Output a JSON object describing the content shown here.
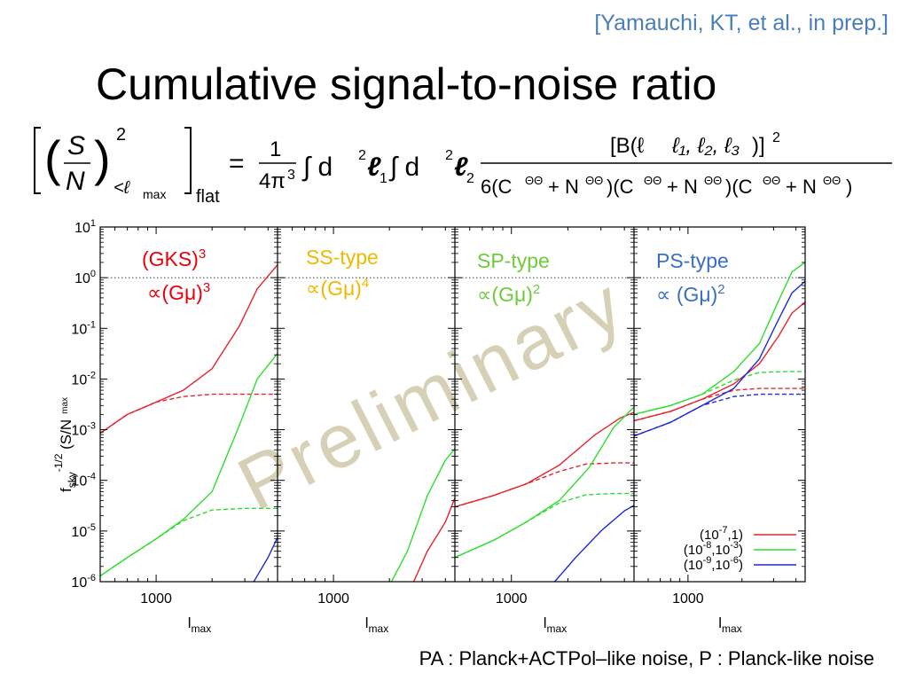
{
  "citation": "[Yamauchi, KT, et al., in prep.]",
  "title": "Cumulative signal-to-noise ratio",
  "formula": {
    "lhs_S": "S",
    "lhs_N": "N",
    "lhs_power": "2",
    "lhs_sub": "<ℓ",
    "lhs_sub2": "max",
    "lhs_flat": "flat",
    "equals": "=",
    "coef_num": "1",
    "coef_den": "4π",
    "coef_den_sup": "3",
    "integral1": "∫ d",
    "integral1_sup": "2",
    "ell1": "ℓ",
    "ell1_sub": "1",
    "integral2": "∫ d",
    "integral2_sup": "2",
    "ell2": "ℓ",
    "ell2_sub": "2",
    "numerator": "[B(ℓ",
    "numerator_tail": ")]",
    "numerator_sup": "2",
    "denominator_lead": "6(C",
    "theta": "ΘΘ",
    "plus": "+ N",
    "close_open": ")(C",
    "close": ")"
  },
  "panel_labels": [
    {
      "line1": "(GKS)",
      "line1_sup": "3",
      "line2": "∝(Gμ)",
      "line2_sup": "3",
      "color": "#e8000b"
    },
    {
      "line1": "SS-type",
      "line1_sup": "",
      "line2": "∝(Gμ)",
      "line2_sup": "4",
      "color": "#f0b800"
    },
    {
      "line1": "SP-type",
      "line1_sup": "",
      "line2": "∝(Gμ)",
      "line2_sup": "2",
      "color": "#6fcb3b"
    },
    {
      "line1": "PS-type",
      "line1_sup": "",
      "line2": "∝ (Gμ)",
      "line2_sup": "2",
      "color": "#3a6ec4"
    }
  ],
  "watermark": "Preliminary",
  "footer": "PA : Planck+ACTPol–like noise, P : Planck-like noise",
  "colors": {
    "red": "#e8232b",
    "green": "#2ede2e",
    "blue": "#1c2bd8",
    "watermark": "#d6d0b6"
  },
  "chart_data": {
    "type": "line",
    "log_y": true,
    "ylim": [
      1e-06,
      10
    ],
    "xlim": [
      500,
      4500
    ],
    "x_tick_label": "1000",
    "xlabel": "l",
    "xlabel_sub": "max",
    "ylabel": "f",
    "ylabel_sub": "sky",
    "ylabel_sup": "-1/2",
    "ylabel_tail": "(S/N",
    "ylabel_tail_sub": "max",
    "y_ticks": [
      {
        "base": "10",
        "exp": "1",
        "value": 10
      },
      {
        "base": "10",
        "exp": "0",
        "value": 1
      },
      {
        "base": "10",
        "exp": "-1",
        "value": 0.1
      },
      {
        "base": "10",
        "exp": "-2",
        "value": 0.01
      },
      {
        "base": "10",
        "exp": "-3",
        "value": 0.001
      },
      {
        "base": "10",
        "exp": "-4",
        "value": 0.0001
      },
      {
        "base": "10",
        "exp": "-5",
        "value": 1e-05
      },
      {
        "base": "10",
        "exp": "-6",
        "value": 1e-06
      }
    ],
    "reference_line": 1,
    "legend": [
      {
        "text": "(10",
        "sup1": "-7",
        "mid": ",1)",
        "sup2": "",
        "tail": "",
        "color": "red"
      },
      {
        "text": "(10",
        "sup1": "-8",
        "mid": ",10",
        "sup2": "-3",
        "tail": ")",
        "color": "green"
      },
      {
        "text": "(10",
        "sup1": "-9",
        "mid": ",10",
        "sup2": "-6",
        "tail": ")",
        "color": "blue"
      }
    ],
    "panels": [
      {
        "name": "GKS",
        "series": [
          {
            "color": "red",
            "style": "solid",
            "points": [
              [
                500,
                0.00085
              ],
              [
                700,
                0.002
              ],
              [
                1000,
                0.0035
              ],
              [
                1400,
                0.006
              ],
              [
                2000,
                0.016
              ],
              [
                2800,
                0.11
              ],
              [
                3500,
                0.6
              ],
              [
                4500,
                1.8
              ]
            ]
          },
          {
            "color": "red",
            "style": "dashed",
            "points": [
              [
                500,
                0.00085
              ],
              [
                700,
                0.002
              ],
              [
                1000,
                0.0035
              ],
              [
                1400,
                0.0045
              ],
              [
                2000,
                0.005
              ],
              [
                3000,
                0.005
              ],
              [
                4500,
                0.005
              ]
            ]
          },
          {
            "color": "green",
            "style": "solid",
            "points": [
              [
                500,
                1.3e-06
              ],
              [
                700,
                3e-06
              ],
              [
                1000,
                7e-06
              ],
              [
                1400,
                1.7e-05
              ],
              [
                2000,
                6e-05
              ],
              [
                2800,
                0.0012
              ],
              [
                3500,
                0.01
              ],
              [
                4500,
                0.032
              ]
            ]
          },
          {
            "color": "green",
            "style": "dashed",
            "points": [
              [
                500,
                1.3e-06
              ],
              [
                700,
                3e-06
              ],
              [
                1000,
                7e-06
              ],
              [
                1400,
                1.6e-05
              ],
              [
                2000,
                2.6e-05
              ],
              [
                3000,
                2.8e-05
              ],
              [
                4500,
                2.8e-05
              ]
            ]
          },
          {
            "color": "blue",
            "style": "solid",
            "points": [
              [
                3350,
                1e-06
              ],
              [
                4000,
                3e-06
              ],
              [
                4500,
                7.5e-06
              ]
            ]
          }
        ]
      },
      {
        "name": "SS",
        "series": [
          {
            "color": "green",
            "style": "solid",
            "points": [
              [
                2050,
                1e-06
              ],
              [
                2500,
                4e-06
              ],
              [
                3200,
                5e-05
              ],
              [
                4000,
                0.00025
              ],
              [
                4500,
                0.00042
              ]
            ]
          },
          {
            "color": "red",
            "style": "solid",
            "points": [
              [
                2700,
                1e-06
              ],
              [
                3200,
                4e-06
              ],
              [
                4000,
                1.5e-05
              ],
              [
                4500,
                4.5e-05
              ]
            ]
          }
        ]
      },
      {
        "name": "SP",
        "series": [
          {
            "color": "red",
            "style": "solid",
            "points": [
              [
                500,
                3e-05
              ],
              [
                800,
                5e-05
              ],
              [
                1200,
                8.5e-05
              ],
              [
                1800,
                0.0002
              ],
              [
                2800,
                0.0008
              ],
              [
                3800,
                0.0017
              ],
              [
                4500,
                0.0022
              ]
            ]
          },
          {
            "color": "red",
            "style": "dashed",
            "points": [
              [
                500,
                3e-05
              ],
              [
                800,
                5e-05
              ],
              [
                1200,
                8.5e-05
              ],
              [
                1800,
                0.00015
              ],
              [
                2500,
                0.00021
              ],
              [
                3500,
                0.00022
              ],
              [
                4500,
                0.00022
              ]
            ]
          },
          {
            "color": "green",
            "style": "solid",
            "points": [
              [
                500,
                3e-06
              ],
              [
                800,
                6.5e-06
              ],
              [
                1200,
                1.5e-05
              ],
              [
                1800,
                4e-05
              ],
              [
                2600,
                0.00018
              ],
              [
                3500,
                0.0011
              ],
              [
                4500,
                0.0028
              ]
            ]
          },
          {
            "color": "green",
            "style": "dashed",
            "points": [
              [
                500,
                3e-06
              ],
              [
                800,
                6.5e-06
              ],
              [
                1200,
                1.5e-05
              ],
              [
                1800,
                3.6e-05
              ],
              [
                2500,
                5.2e-05
              ],
              [
                3500,
                5.5e-05
              ],
              [
                4500,
                5.5e-05
              ]
            ]
          },
          {
            "color": "blue",
            "style": "solid",
            "points": [
              [
                1700,
                1e-06
              ],
              [
                2200,
                3e-06
              ],
              [
                3000,
                1e-05
              ],
              [
                4000,
                2.5e-05
              ],
              [
                4500,
                3.2e-05
              ]
            ]
          }
        ]
      },
      {
        "name": "PS",
        "series": [
          {
            "color": "green",
            "style": "solid",
            "points": [
              [
                500,
                0.002
              ],
              [
                800,
                0.003
              ],
              [
                1200,
                0.005
              ],
              [
                1800,
                0.014
              ],
              [
                2500,
                0.05
              ],
              [
                3200,
                0.35
              ],
              [
                3800,
                1.3
              ],
              [
                4500,
                2.0
              ]
            ]
          },
          {
            "color": "green",
            "style": "dashed",
            "points": [
              [
                500,
                0.002
              ],
              [
                800,
                0.003
              ],
              [
                1200,
                0.005
              ],
              [
                1800,
                0.0095
              ],
              [
                2500,
                0.0135
              ],
              [
                3500,
                0.014
              ],
              [
                4500,
                0.014
              ]
            ]
          },
          {
            "color": "red",
            "style": "solid",
            "points": [
              [
                500,
                0.0015
              ],
              [
                800,
                0.0023
              ],
              [
                1200,
                0.004
              ],
              [
                1800,
                0.008
              ],
              [
                2500,
                0.02
              ],
              [
                3200,
                0.07
              ],
              [
                3800,
                0.2
              ],
              [
                4500,
                0.33
              ]
            ]
          },
          {
            "color": "red",
            "style": "dashed",
            "points": [
              [
                500,
                0.0015
              ],
              [
                800,
                0.0023
              ],
              [
                1200,
                0.004
              ],
              [
                1800,
                0.006
              ],
              [
                2500,
                0.0065
              ],
              [
                3500,
                0.0065
              ],
              [
                4500,
                0.0065
              ]
            ]
          },
          {
            "color": "blue",
            "style": "solid",
            "points": [
              [
                500,
                0.00075
              ],
              [
                800,
                0.0014
              ],
              [
                1200,
                0.003
              ],
              [
                1800,
                0.0065
              ],
              [
                2500,
                0.025
              ],
              [
                3200,
                0.15
              ],
              [
                3800,
                0.5
              ],
              [
                4500,
                0.85
              ]
            ]
          },
          {
            "color": "blue",
            "style": "dashed",
            "points": [
              [
                500,
                0.00075
              ],
              [
                800,
                0.0014
              ],
              [
                1200,
                0.003
              ],
              [
                1800,
                0.0045
              ],
              [
                2500,
                0.005
              ],
              [
                3500,
                0.005
              ],
              [
                4500,
                0.005
              ]
            ]
          }
        ]
      }
    ]
  }
}
